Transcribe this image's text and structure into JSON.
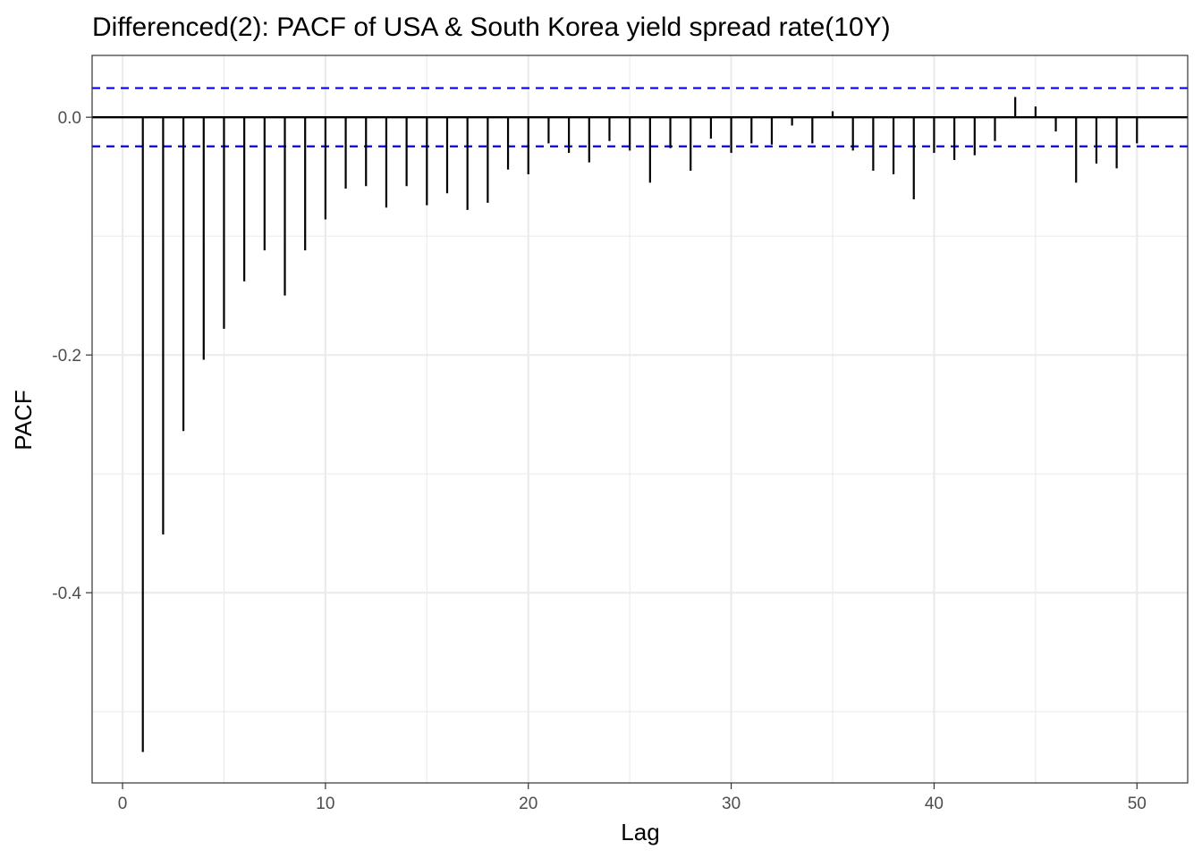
{
  "chart_data": {
    "type": "bar",
    "title": "Differenced(2): PACF of USA & South Korea yield spread rate(10Y)",
    "xlabel": "Lag",
    "ylabel": "PACF",
    "xlim": [
      -1.5,
      52.5
    ],
    "ylim": [
      -0.56,
      0.052
    ],
    "x_ticks": [
      0,
      10,
      20,
      30,
      40,
      50
    ],
    "x_tick_labels": [
      "0",
      "10",
      "20",
      "30",
      "40",
      "50"
    ],
    "y_ticks": [
      0.0,
      -0.2,
      -0.4
    ],
    "y_tick_labels": [
      "0.0",
      "-0.2",
      "-0.4"
    ],
    "y_minor_ticks": [
      -0.1,
      -0.3,
      -0.5
    ],
    "x_minor_ticks": [
      5,
      15,
      25,
      35,
      45
    ],
    "confidence_bound": 0.0245,
    "grid": true,
    "colors": {
      "bars": "#000000",
      "bounds": "#0000ff",
      "grid": "#ebebeb",
      "border": "#333333"
    },
    "lags": [
      1,
      2,
      3,
      4,
      5,
      6,
      7,
      8,
      9,
      10,
      11,
      12,
      13,
      14,
      15,
      16,
      17,
      18,
      19,
      20,
      21,
      22,
      23,
      24,
      25,
      26,
      27,
      28,
      29,
      30,
      31,
      32,
      33,
      34,
      35,
      36,
      37,
      38,
      39,
      40,
      41,
      42,
      43,
      44,
      45,
      46,
      47,
      48,
      49,
      50
    ],
    "values": [
      -0.534,
      -0.351,
      -0.264,
      -0.204,
      -0.178,
      -0.138,
      -0.112,
      -0.15,
      -0.112,
      -0.086,
      -0.06,
      -0.058,
      -0.076,
      -0.058,
      -0.074,
      -0.064,
      -0.078,
      -0.072,
      -0.044,
      -0.048,
      -0.022,
      -0.03,
      -0.038,
      -0.02,
      -0.028,
      -0.055,
      -0.026,
      -0.045,
      -0.018,
      -0.03,
      -0.022,
      -0.023,
      -0.007,
      -0.022,
      0.005,
      -0.028,
      -0.045,
      -0.048,
      -0.069,
      -0.03,
      -0.036,
      -0.032,
      -0.02,
      0.017,
      0.009,
      -0.012,
      -0.055,
      -0.039,
      -0.043,
      -0.022
    ]
  }
}
